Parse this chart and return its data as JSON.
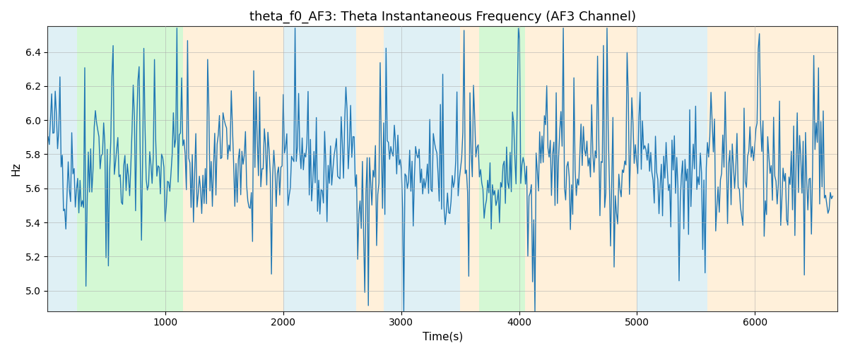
{
  "title": "theta_f0_AF3: Theta Instantaneous Frequency (AF3 Channel)",
  "xlabel": "Time(s)",
  "ylabel": "Hz",
  "ylim": [
    4.88,
    6.55
  ],
  "xlim": [
    0,
    6700
  ],
  "bg_bands": [
    {
      "xmin": 0,
      "xmax": 250,
      "color": "#ADD8E6",
      "alpha": 0.38
    },
    {
      "xmin": 250,
      "xmax": 1150,
      "color": "#90EE90",
      "alpha": 0.38
    },
    {
      "xmin": 1150,
      "xmax": 2000,
      "color": "#FFDEAD",
      "alpha": 0.45
    },
    {
      "xmin": 2000,
      "xmax": 2620,
      "color": "#ADD8E6",
      "alpha": 0.38
    },
    {
      "xmin": 2620,
      "xmax": 2850,
      "color": "#FFDEAD",
      "alpha": 0.45
    },
    {
      "xmin": 2850,
      "xmax": 3500,
      "color": "#ADD8E6",
      "alpha": 0.38
    },
    {
      "xmin": 3500,
      "xmax": 3660,
      "color": "#FFDEAD",
      "alpha": 0.45
    },
    {
      "xmin": 3660,
      "xmax": 4050,
      "color": "#90EE90",
      "alpha": 0.38
    },
    {
      "xmin": 4050,
      "xmax": 5000,
      "color": "#FFDEAD",
      "alpha": 0.45
    },
    {
      "xmin": 5000,
      "xmax": 5600,
      "color": "#ADD8E6",
      "alpha": 0.38
    },
    {
      "xmin": 5600,
      "xmax": 6700,
      "color": "#FFDEAD",
      "alpha": 0.45
    }
  ],
  "line_color": "#1f77b4",
  "line_width": 1.0,
  "grid_color": "#aaaaaa",
  "grid_alpha": 0.6,
  "title_fontsize": 13,
  "label_fontsize": 11,
  "tick_fontsize": 10,
  "yticks": [
    5.0,
    5.2,
    5.4,
    5.6,
    5.8,
    6.0,
    6.2,
    6.4
  ],
  "xticks": [
    1000,
    2000,
    3000,
    4000,
    5000,
    6000
  ],
  "seed": 42,
  "n_points": 665,
  "x_start": 5,
  "x_end": 6660
}
